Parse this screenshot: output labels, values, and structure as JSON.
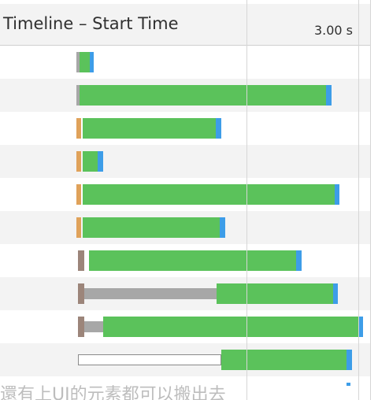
{
  "header": {
    "title": "Timeline – Start Time",
    "tick_label": "3.00 s"
  },
  "colors": {
    "content_download": "#5bc25b",
    "waiting": "#3d9de8",
    "dns": "#e0a25a",
    "stalled": "#a7a7a7",
    "queueing": "#9c857a",
    "row_alt": "#f3f3f3"
  },
  "rows": [
    {
      "blocked": "gray",
      "stall": 0,
      "bar_start": 101,
      "bar_end": 114,
      "wait_end": 119
    },
    {
      "blocked": "gray",
      "stall": 0,
      "bar_start": 101,
      "bar_end": 414,
      "wait_end": 421
    },
    {
      "blocked": "orange",
      "stall": 0,
      "bar_start": 105,
      "bar_end": 274,
      "wait_end": 281
    },
    {
      "blocked": "orange",
      "stall": 0,
      "bar_start": 105,
      "bar_end": 124,
      "wait_end": 131
    },
    {
      "blocked": "orange",
      "stall": 0,
      "bar_start": 105,
      "bar_end": 425,
      "wait_end": 431
    },
    {
      "blocked": "orange",
      "stall": 0,
      "bar_start": 105,
      "bar_end": 279,
      "wait_end": 286
    },
    {
      "blocked": "brown",
      "stall": 0,
      "bar_start": 113,
      "bar_end": 376,
      "wait_end": 383
    },
    {
      "blocked": "brown",
      "stall": 1,
      "bar_start": 275,
      "bar_end": 423,
      "wait_end": 429
    },
    {
      "blocked": "brown",
      "stall": 1,
      "bar_start": 131,
      "bar_end": 455,
      "wait_end": 461
    },
    {
      "blocked": "outline",
      "stall": 1,
      "bar_start": 281,
      "bar_end": 440,
      "wait_end": 447
    }
  ],
  "bottom_text": "還有上UI的元素都可以搬出去"
}
